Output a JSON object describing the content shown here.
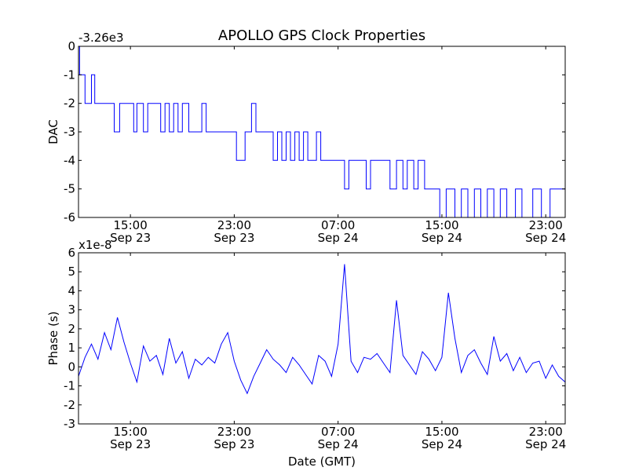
{
  "colors": {
    "series": "#0000ff",
    "axes": "#000000",
    "background": "#ffffff"
  },
  "chart_data": [
    {
      "type": "line",
      "title": "APOLLO GPS Clock Properties",
      "xlabel": "",
      "ylabel": "DAC",
      "offset_label": "-3.26e3",
      "x_axis": "datetime",
      "xlim": [
        "Sep 23 11:00",
        "Sep 25 00:30"
      ],
      "ylim": [
        -6,
        0
      ],
      "yticks": [
        0,
        -1,
        -2,
        -3,
        -4,
        -5,
        -6
      ],
      "yticklabels": [
        "0",
        "-1",
        "-2",
        "-3",
        "-4",
        "-5",
        "-6"
      ],
      "xticks": [
        {
          "time": "Sep 23 15:00",
          "label": "15:00",
          "date": "Sep 23"
        },
        {
          "time": "Sep 23 23:00",
          "label": "23:00",
          "date": "Sep 23"
        },
        {
          "time": "Sep 24 07:00",
          "label": "07:00",
          "date": "Sep 24"
        },
        {
          "time": "Sep 24 15:00",
          "label": "15:00",
          "date": "Sep 24"
        },
        {
          "time": "Sep 24 23:00",
          "label": "23:00",
          "date": "Sep 24"
        }
      ],
      "grid": false,
      "series": [
        {
          "style": "step",
          "x": [
            "Sep 23 11:00",
            "Sep 23 11:05",
            "Sep 23 11:15",
            "Sep 23 11:30",
            "Sep 23 12:00",
            "Sep 23 12:15",
            "Sep 23 12:45",
            "Sep 23 13:05",
            "Sep 23 13:45",
            "Sep 23 14:10",
            "Sep 23 14:30",
            "Sep 23 15:15",
            "Sep 23 15:30",
            "Sep 23 16:00",
            "Sep 23 16:20",
            "Sep 23 17:00",
            "Sep 23 17:20",
            "Sep 23 17:40",
            "Sep 23 18:00",
            "Sep 23 18:20",
            "Sep 23 18:40",
            "Sep 23 19:00",
            "Sep 23 19:30",
            "Sep 23 20:30",
            "Sep 23 20:50",
            "Sep 23 21:10",
            "Sep 23 21:30",
            "Sep 23 22:00",
            "Sep 23 23:10",
            "Sep 23 23:50",
            "Sep 24 00:20",
            "Sep 24 00:40",
            "Sep 24 01:00",
            "Sep 24 01:40",
            "Sep 24 02:00",
            "Sep 24 02:20",
            "Sep 24 02:40",
            "Sep 24 03:00",
            "Sep 24 03:20",
            "Sep 24 03:40",
            "Sep 24 04:00",
            "Sep 24 04:20",
            "Sep 24 04:40",
            "Sep 24 05:00",
            "Sep 24 05:20",
            "Sep 24 05:40",
            "Sep 24 06:10",
            "Sep 24 06:30",
            "Sep 24 06:50",
            "Sep 24 07:30",
            "Sep 24 07:50",
            "Sep 24 08:30",
            "Sep 24 09:10",
            "Sep 24 09:30",
            "Sep 24 10:00",
            "Sep 24 10:30",
            "Sep 24 11:00",
            "Sep 24 11:30",
            "Sep 24 12:00",
            "Sep 24 12:20",
            "Sep 24 12:50",
            "Sep 24 13:10",
            "Sep 24 13:40",
            "Sep 24 14:00",
            "Sep 24 14:50",
            "Sep 24 15:20",
            "Sep 24 16:00",
            "Sep 24 16:30",
            "Sep 24 17:00",
            "Sep 24 17:30",
            "Sep 24 18:00",
            "Sep 24 18:30",
            "Sep 24 19:00",
            "Sep 24 19:30",
            "Sep 24 20:00",
            "Sep 24 20:40",
            "Sep 24 21:10",
            "Sep 24 22:00",
            "Sep 24 22:40",
            "Sep 24 23:20",
            "Sep 24 23:40",
            "Sep 25 00:30"
          ],
          "y": [
            0,
            -1,
            -1,
            -2,
            -1,
            -2,
            -2,
            -2,
            -3,
            -2,
            -2,
            -3,
            -2,
            -3,
            -2,
            -2,
            -3,
            -2,
            -3,
            -2,
            -3,
            -2,
            -3,
            -2,
            -3,
            -3,
            -3,
            -3,
            -4,
            -3,
            -2,
            -3,
            -3,
            -3,
            -4,
            -3,
            -4,
            -3,
            -4,
            -3,
            -4,
            -3,
            -4,
            -4,
            -3,
            -4,
            -4,
            -4,
            -4,
            -5,
            -4,
            -4,
            -5,
            -4,
            -4,
            -4,
            -5,
            -4,
            -5,
            -4,
            -5,
            -4,
            -5,
            -5,
            -6,
            -5,
            -6,
            -5,
            -6,
            -5,
            -6,
            -5,
            -6,
            -5,
            -6,
            -5,
            -6,
            -5,
            -6,
            -5,
            -5,
            -5
          ]
        }
      ]
    },
    {
      "type": "line",
      "title": "",
      "xlabel": "Date (GMT)",
      "ylabel": "Phase (s)",
      "offset_label": "x1e-8",
      "x_axis": "datetime",
      "xlim": [
        "Sep 23 11:00",
        "Sep 25 00:30"
      ],
      "ylim": [
        -3,
        6
      ],
      "yticks": [
        6,
        5,
        4,
        3,
        2,
        1,
        0,
        -1,
        -2,
        -3
      ],
      "yticklabels": [
        "6",
        "5",
        "4",
        "3",
        "2",
        "1",
        "0",
        "-1",
        "-2",
        "-3"
      ],
      "xticks": [
        {
          "time": "Sep 23 15:00",
          "label": "15:00",
          "date": "Sep 23"
        },
        {
          "time": "Sep 23 23:00",
          "label": "23:00",
          "date": "Sep 23"
        },
        {
          "time": "Sep 24 07:00",
          "label": "07:00",
          "date": "Sep 24"
        },
        {
          "time": "Sep 24 15:00",
          "label": "15:00",
          "date": "Sep 24"
        },
        {
          "time": "Sep 24 23:00",
          "label": "23:00",
          "date": "Sep 24"
        }
      ],
      "grid": false,
      "series": [
        {
          "style": "line",
          "x": [
            "Sep 23 11:00",
            "Sep 23 11:30",
            "Sep 23 12:00",
            "Sep 23 12:30",
            "Sep 23 13:00",
            "Sep 23 13:30",
            "Sep 23 14:00",
            "Sep 23 14:30",
            "Sep 23 15:00",
            "Sep 23 15:30",
            "Sep 23 16:00",
            "Sep 23 16:30",
            "Sep 23 17:00",
            "Sep 23 17:30",
            "Sep 23 18:00",
            "Sep 23 18:30",
            "Sep 23 19:00",
            "Sep 23 19:30",
            "Sep 23 20:00",
            "Sep 23 20:30",
            "Sep 23 21:00",
            "Sep 23 21:30",
            "Sep 23 22:00",
            "Sep 23 22:30",
            "Sep 23 23:00",
            "Sep 23 23:30",
            "Sep 24 00:00",
            "Sep 24 00:30",
            "Sep 24 01:00",
            "Sep 24 01:30",
            "Sep 24 02:00",
            "Sep 24 02:30",
            "Sep 24 03:00",
            "Sep 24 03:30",
            "Sep 24 04:00",
            "Sep 24 04:30",
            "Sep 24 05:00",
            "Sep 24 05:30",
            "Sep 24 06:00",
            "Sep 24 06:30",
            "Sep 24 07:00",
            "Sep 24 07:30",
            "Sep 24 08:00",
            "Sep 24 08:30",
            "Sep 24 09:00",
            "Sep 24 09:30",
            "Sep 24 10:00",
            "Sep 24 10:30",
            "Sep 24 11:00",
            "Sep 24 11:30",
            "Sep 24 12:00",
            "Sep 24 12:30",
            "Sep 24 13:00",
            "Sep 24 13:30",
            "Sep 24 14:00",
            "Sep 24 14:30",
            "Sep 24 15:00",
            "Sep 24 15:30",
            "Sep 24 16:00",
            "Sep 24 16:30",
            "Sep 24 17:00",
            "Sep 24 17:30",
            "Sep 24 18:00",
            "Sep 24 18:30",
            "Sep 24 19:00",
            "Sep 24 19:30",
            "Sep 24 20:00",
            "Sep 24 20:30",
            "Sep 24 21:00",
            "Sep 24 21:30",
            "Sep 24 22:00",
            "Sep 24 22:30",
            "Sep 24 23:00",
            "Sep 24 23:30",
            "Sep 25 00:00",
            "Sep 25 00:30"
          ],
          "y": [
            -0.5,
            0.5,
            1.2,
            0.4,
            1.8,
            0.9,
            2.6,
            1.3,
            0.2,
            -0.8,
            1.1,
            0.3,
            0.6,
            -0.4,
            1.5,
            0.2,
            0.8,
            -0.6,
            0.4,
            0.1,
            0.5,
            0.2,
            1.2,
            1.8,
            0.3,
            -0.7,
            -1.4,
            -0.5,
            0.2,
            0.9,
            0.4,
            0.1,
            -0.3,
            0.5,
            0.1,
            -0.4,
            -0.9,
            0.6,
            0.3,
            -0.5,
            1.2,
            5.4,
            0.3,
            -0.3,
            0.5,
            0.4,
            0.7,
            0.2,
            -0.3,
            3.5,
            0.6,
            0.1,
            -0.4,
            0.8,
            0.4,
            -0.2,
            0.5,
            3.9,
            1.5,
            -0.3,
            0.6,
            0.9,
            0.2,
            -0.4,
            1.6,
            0.3,
            0.7,
            -0.2,
            0.5,
            -0.3,
            0.2,
            0.3,
            -0.6,
            0.1,
            -0.5,
            -0.8
          ]
        }
      ]
    }
  ]
}
